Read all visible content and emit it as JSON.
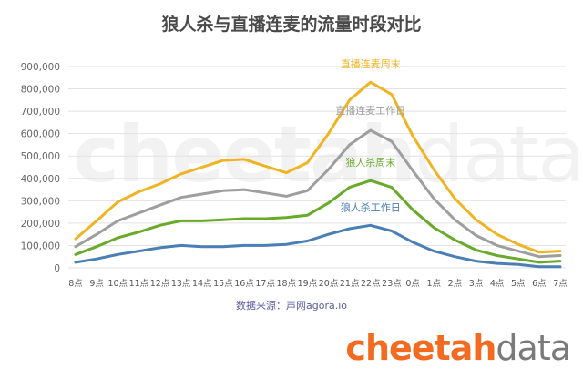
{
  "chart_data": {
    "type": "line",
    "title": "狼人杀与直播连麦的流量时段对比",
    "x": [
      "8点",
      "9点",
      "10点",
      "11点",
      "12点",
      "13点",
      "14点",
      "15点",
      "16点",
      "17点",
      "18点",
      "19点",
      "20点",
      "21点",
      "22点",
      "23点",
      "0点",
      "1点",
      "2点",
      "3点",
      "4点",
      "5点",
      "6点",
      "7点"
    ],
    "y_ticks": [
      "0",
      "100,000",
      "200,000",
      "300,000",
      "400,000",
      "500,000",
      "600,000",
      "700,000",
      "800,000",
      "900,000"
    ],
    "ylim": [
      0,
      900000
    ],
    "grid": true,
    "series": [
      {
        "name": "直播连麦周末",
        "color": "#f0b323",
        "values": [
          130000,
          210000,
          295000,
          340000,
          375000,
          420000,
          450000,
          480000,
          485000,
          455000,
          425000,
          470000,
          600000,
          750000,
          830000,
          775000,
          590000,
          440000,
          310000,
          215000,
          150000,
          105000,
          70000,
          75000
        ]
      },
      {
        "name": "直播连麦工作日",
        "color": "#9e9e9e",
        "values": [
          95000,
          150000,
          210000,
          245000,
          280000,
          315000,
          330000,
          345000,
          350000,
          335000,
          320000,
          345000,
          440000,
          550000,
          615000,
          565000,
          435000,
          310000,
          215000,
          145000,
          100000,
          75000,
          50000,
          55000
        ]
      },
      {
        "name": "狼人杀周末",
        "color": "#6aaa2a",
        "values": [
          60000,
          95000,
          135000,
          160000,
          190000,
          210000,
          210000,
          215000,
          220000,
          220000,
          225000,
          235000,
          290000,
          360000,
          390000,
          360000,
          260000,
          180000,
          125000,
          80000,
          55000,
          40000,
          25000,
          30000
        ]
      },
      {
        "name": "狼人杀工作日",
        "color": "#4a7fb5",
        "values": [
          25000,
          40000,
          60000,
          75000,
          90000,
          100000,
          95000,
          95000,
          100000,
          100000,
          105000,
          120000,
          150000,
          175000,
          190000,
          165000,
          115000,
          75000,
          50000,
          30000,
          20000,
          15000,
          5000,
          5000
        ]
      }
    ]
  },
  "source": "数据来源：声网agora.io",
  "watermark": {
    "a": "cheetah",
    "b": "data"
  },
  "brand": {
    "a": "cheetah",
    "b": "data"
  }
}
